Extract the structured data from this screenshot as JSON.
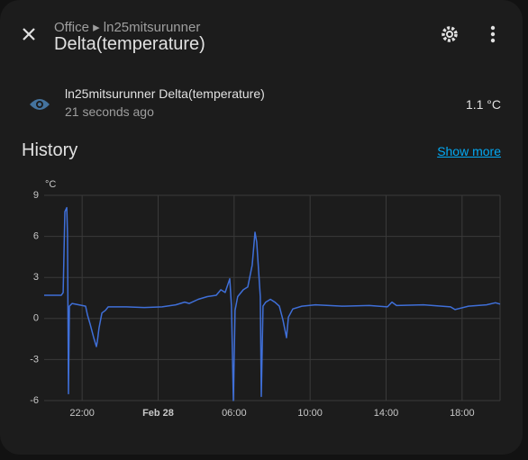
{
  "header": {
    "breadcrumb": "Office ▸ ln25mitsurunner",
    "title": "Delta(temperature)"
  },
  "entity": {
    "name": "ln25mitsurunner Delta(temperature)",
    "last_changed": "21 seconds ago",
    "state": "1.1 °C"
  },
  "history": {
    "title": "History",
    "link": "Show more"
  },
  "chart_data": {
    "type": "line",
    "y_unit": "°C",
    "color": "#3f6fd8",
    "grid": true,
    "x": [
      20.0,
      20.9,
      21.0,
      21.09,
      21.19,
      21.23,
      21.28,
      21.33,
      21.47,
      22.18,
      22.28,
      22.42,
      22.61,
      22.75,
      22.8,
      22.89,
      23.04,
      23.23,
      23.37,
      24.32,
      25.27,
      26.21,
      26.93,
      27.4,
      27.64,
      28.11,
      28.59,
      29.06,
      29.3,
      29.53,
      29.77,
      29.86,
      29.96,
      30.05,
      30.19,
      30.48,
      30.72,
      30.95,
      31.1,
      31.19,
      31.29,
      31.38,
      31.43,
      31.52,
      31.67,
      31.91,
      32.14,
      32.38,
      32.57,
      32.76,
      32.86,
      33.09,
      33.57,
      34.28,
      35.7,
      37.12,
      38.07,
      38.31,
      38.55,
      39.97,
      41.39,
      41.63,
      42.34,
      43.29,
      43.76,
      44.0
    ],
    "series": [
      {
        "values": [
          1.7,
          1.7,
          1.9,
          7.8,
          8.1,
          6.2,
          -5.5,
          0.9,
          1.1,
          0.9,
          0.25,
          -0.4,
          -1.4,
          -2.05,
          -1.7,
          -0.7,
          0.4,
          0.6,
          0.85,
          0.85,
          0.8,
          0.85,
          1.0,
          1.2,
          1.1,
          1.4,
          1.6,
          1.7,
          2.1,
          1.9,
          2.9,
          0.9,
          -6.0,
          0.6,
          1.6,
          2.1,
          2.3,
          3.9,
          6.3,
          5.6,
          3.5,
          1.6,
          -5.7,
          0.9,
          1.2,
          1.4,
          1.2,
          0.9,
          -0.1,
          -1.4,
          0.1,
          0.7,
          0.9,
          1.0,
          0.9,
          0.95,
          0.85,
          1.2,
          0.95,
          1.0,
          0.85,
          0.65,
          0.9,
          1.0,
          1.15,
          1.05
        ]
      }
    ],
    "xlim": [
      20,
      44
    ],
    "xticks": [
      {
        "value": 22,
        "label": "22:00"
      },
      {
        "value": 26,
        "label": "Feb 28"
      },
      {
        "value": 30,
        "label": "06:00"
      },
      {
        "value": 34,
        "label": "10:00"
      },
      {
        "value": 38,
        "label": "14:00"
      },
      {
        "value": 42,
        "label": "18:00"
      }
    ],
    "ylim": [
      -6,
      9
    ],
    "yticks": [
      -6,
      -3,
      0,
      3,
      6,
      9
    ]
  }
}
